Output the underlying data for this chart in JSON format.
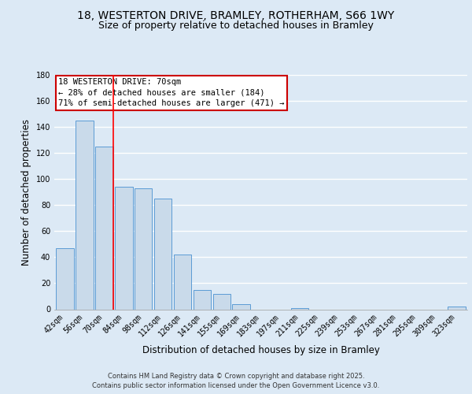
{
  "title": "18, WESTERTON DRIVE, BRAMLEY, ROTHERHAM, S66 1WY",
  "subtitle": "Size of property relative to detached houses in Bramley",
  "xlabel": "Distribution of detached houses by size in Bramley",
  "ylabel": "Number of detached properties",
  "bar_labels": [
    "42sqm",
    "56sqm",
    "70sqm",
    "84sqm",
    "98sqm",
    "112sqm",
    "126sqm",
    "141sqm",
    "155sqm",
    "169sqm",
    "183sqm",
    "197sqm",
    "211sqm",
    "225sqm",
    "239sqm",
    "253sqm",
    "267sqm",
    "281sqm",
    "295sqm",
    "309sqm",
    "323sqm"
  ],
  "bar_values": [
    47,
    145,
    125,
    94,
    93,
    85,
    42,
    15,
    12,
    4,
    0,
    0,
    1,
    0,
    0,
    0,
    0,
    0,
    0,
    0,
    2
  ],
  "bar_color": "#c9daea",
  "bar_edge_color": "#5b9bd5",
  "red_line_index": 2,
  "ylim": [
    0,
    180
  ],
  "yticks": [
    0,
    20,
    40,
    60,
    80,
    100,
    120,
    140,
    160,
    180
  ],
  "annotation_title": "18 WESTERTON DRIVE: 70sqm",
  "annotation_line1": "← 28% of detached houses are smaller (184)",
  "annotation_line2": "71% of semi-detached houses are larger (471) →",
  "footer_line1": "Contains HM Land Registry data © Crown copyright and database right 2025.",
  "footer_line2": "Contains public sector information licensed under the Open Government Licence v3.0.",
  "bg_color": "#dce9f5",
  "plot_bg_color": "#dce9f5",
  "title_fontsize": 10,
  "subtitle_fontsize": 9,
  "axis_label_fontsize": 8.5,
  "tick_fontsize": 7,
  "annotation_box_color": "#ffffff",
  "annotation_box_edge": "#cc0000",
  "grid_color": "#ffffff",
  "footer_fontsize": 6
}
